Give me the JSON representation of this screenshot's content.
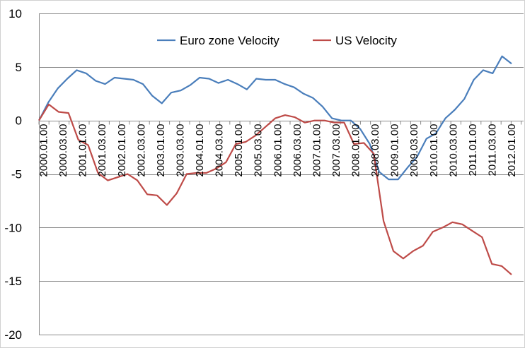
{
  "chart_data": {
    "type": "line",
    "title": "",
    "xlabel": "",
    "ylabel": "",
    "ylim": [
      -20,
      10
    ],
    "yticks": [
      10,
      5,
      0,
      -5,
      -10,
      -15,
      -20
    ],
    "grid": true,
    "legend_position": "top-center",
    "x_tick_labels": [
      "2000.01.00",
      "2000.03.00",
      "2001.01.00",
      "2001.03.00",
      "2002.01.00",
      "2002.03.00",
      "2003.01.00",
      "2003.03.00",
      "2004.01.00",
      "2004.03.00",
      "2005.01.00",
      "2005.03.00",
      "2006.01.00",
      "2006.03.00",
      "2007.01.00",
      "2007.03.00",
      "2008.01.00",
      "2008.03.00",
      "2009.01.00",
      "2009.03.00",
      "2010.01.00",
      "2010.03.00",
      "2011.01.00",
      "2011.03.00",
      "2012.01.00"
    ],
    "series": [
      {
        "name": "Euro zone Velocity",
        "color": "#4a7ebb",
        "values": [
          0.0,
          1.7,
          3.0,
          3.9,
          4.7,
          4.4,
          3.7,
          3.4,
          4.0,
          3.9,
          3.8,
          3.4,
          2.3,
          1.6,
          2.6,
          2.8,
          3.3,
          4.0,
          3.9,
          3.5,
          3.8,
          3.4,
          2.9,
          3.9,
          3.8,
          3.8,
          3.4,
          3.1,
          2.5,
          2.1,
          1.3,
          0.2,
          0.0,
          0.0,
          -0.8,
          -2.2,
          -4.8,
          -5.5,
          -5.5,
          -4.4,
          -3.4,
          -1.7,
          -1.2,
          0.2,
          1.0,
          2.0,
          3.8,
          4.7,
          4.4,
          6.0,
          5.3
        ]
      },
      {
        "name": "US Velocity",
        "color": "#be4b48",
        "values": [
          0.0,
          1.5,
          0.8,
          0.7,
          -1.8,
          -2.3,
          -4.9,
          -5.6,
          -5.3,
          -5.0,
          -5.6,
          -6.9,
          -7.0,
          -7.9,
          -6.8,
          -5.0,
          -4.9,
          -4.9,
          -4.5,
          -3.9,
          -2.2,
          -2.0,
          -1.4,
          -0.6,
          0.2,
          0.5,
          0.3,
          -0.2,
          0.0,
          0.0,
          -0.2,
          -0.2,
          -2.2,
          -2.1,
          -3.1,
          -9.4,
          -12.2,
          -12.9,
          -12.2,
          -11.7,
          -10.4,
          -10.0,
          -9.5,
          -9.7,
          -10.3,
          -10.9,
          -13.4,
          -13.6,
          -14.4
        ]
      }
    ]
  }
}
